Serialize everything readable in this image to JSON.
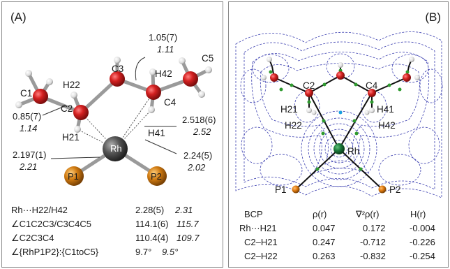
{
  "panelA": {
    "tag": "(A)",
    "atoms": {
      "C1": "C1",
      "C2": "C2",
      "C3": "C3",
      "C4": "C4",
      "C5": "C5",
      "H21": "H21",
      "H22": "H22",
      "H41": "H41",
      "H42": "H42",
      "Rh": "Rh",
      "P1": "P1",
      "P2": "P2"
    },
    "annotations": [
      {
        "value": "1.05(7)",
        "calc": "1.11"
      },
      {
        "value": "0.85(7)",
        "calc": "1.14"
      },
      {
        "value": "2.518(6)",
        "calc": "2.52"
      },
      {
        "value": "2.24(5)",
        "calc": "2.02"
      },
      {
        "value": "2.197(1)",
        "calc": "2.21"
      }
    ],
    "table": [
      {
        "label": "Rh···H22/H42",
        "value": "2.28(5)",
        "calc": "2.31"
      },
      {
        "label": "∠C1C2C3/C3C4C5",
        "value": "114.1(6)",
        "calc": "115.7"
      },
      {
        "label": "∠C2C3C4",
        "value": "110.4(4)",
        "calc": "109.7"
      },
      {
        "label": "∠{RhP1P2}:{C1toC5}",
        "value": "9.7°",
        "calc": "9.5°"
      }
    ]
  },
  "panelB": {
    "tag": "(B)",
    "atoms": {
      "C2": "C2",
      "C4": "C4",
      "H21": "H21",
      "H22": "H22",
      "H41": "H41",
      "H42": "H42",
      "Rh": "Rh",
      "P1": "P1",
      "P2": "P2"
    },
    "table": {
      "headers": [
        "BCP",
        "ρ(r)",
        "∇²ρ(r)",
        "H(r)"
      ],
      "rows": [
        [
          "Rh···H21",
          "0.047",
          "0.172",
          "-0.004"
        ],
        [
          "C2–H21",
          "0.247",
          "-0.712",
          "-0.226"
        ],
        [
          "C2–H22",
          "0.263",
          "-0.832",
          "-0.254"
        ]
      ]
    }
  },
  "colors": {
    "carbon": "#d42020",
    "rhodium": "#505050",
    "phosphorus": "#d07a10",
    "hydrogen": "#e6e6e6",
    "contour": "#3b3fb0",
    "bcp": "#2e9a2e"
  }
}
